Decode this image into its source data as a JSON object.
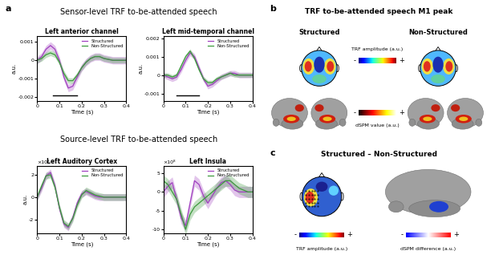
{
  "chart_data": [
    {
      "type": "line",
      "title": "Left anterior channel",
      "xlabel": "Time (s)",
      "ylabel": "a.u.",
      "x": [
        0,
        0.02,
        0.04,
        0.06,
        0.08,
        0.1,
        0.12,
        0.14,
        0.16,
        0.18,
        0.2,
        0.22,
        0.24,
        0.26,
        0.28,
        0.3,
        0.32,
        0.34,
        0.36,
        0.38,
        0.4
      ],
      "xlim": [
        0,
        0.4
      ],
      "xticks": [
        0,
        0.1,
        0.2,
        0.3,
        0.4
      ],
      "ylim": [
        -0.0022,
        0.0013
      ],
      "yticks": [
        -0.002,
        -0.001,
        0,
        0.001
      ],
      "legend": "upper right",
      "significance": {
        "x": [
          0.07,
          0.18
        ],
        "y": -0.0019
      },
      "series": [
        {
          "name": "Structured",
          "color": "#a040c0",
          "error": 0.0002,
          "values": [
            0,
            0.0002,
            0.0006,
            0.0008,
            0.0006,
            0.0,
            -0.0009,
            -0.0015,
            -0.0014,
            -0.0009,
            -0.0004,
            -0.0001,
            0.0001,
            0.0002,
            0.0002,
            0.0001,
            5e-05,
            0,
            0,
            0,
            0
          ]
        },
        {
          "name": "Non-Structured",
          "color": "#3c9a3c",
          "error": 0.00015,
          "values": [
            0,
            0.0001,
            0.0003,
            0.0004,
            0.0003,
            -0.0001,
            -0.0007,
            -0.0011,
            -0.0011,
            -0.0008,
            -0.0004,
            -0.0001,
            0.0001,
            0.0002,
            0.0002,
            0.0001,
            5e-05,
            0,
            0,
            0,
            0
          ]
        }
      ]
    },
    {
      "type": "line",
      "title": "Left mid-temporal channel",
      "xlabel": "Time (s)",
      "ylabel": "a.u.",
      "x": [
        0,
        0.02,
        0.04,
        0.06,
        0.08,
        0.1,
        0.12,
        0.14,
        0.16,
        0.18,
        0.2,
        0.22,
        0.24,
        0.26,
        0.28,
        0.3,
        0.32,
        0.34,
        0.36,
        0.38,
        0.4
      ],
      "xlim": [
        0,
        0.4
      ],
      "xticks": [
        0,
        0.1,
        0.2,
        0.3,
        0.4
      ],
      "ylim": [
        -0.0014,
        0.0021
      ],
      "yticks": [
        -0.001,
        0,
        0.001,
        0.002
      ],
      "legend": "upper right",
      "significance": {
        "x": [
          0.06,
          0.16
        ],
        "y": -0.0011
      },
      "series": [
        {
          "name": "Structured",
          "color": "#a040c0",
          "error": 0.00015,
          "values": [
            0,
            -0.0001,
            -0.0002,
            -0.0001,
            0.0003,
            0.0008,
            0.0012,
            0.001,
            0.0004,
            -0.0002,
            -0.0006,
            -0.0005,
            -0.0003,
            -0.0001,
            0,
            0.0001,
            0.0001,
            0,
            0,
            0,
            0
          ]
        },
        {
          "name": "Non-Structured",
          "color": "#3c9a3c",
          "error": 0.00012,
          "values": [
            0,
            0,
            -0.0001,
            0,
            0.0005,
            0.001,
            0.0013,
            0.0009,
            0.0003,
            -0.0002,
            -0.0004,
            -0.0004,
            -0.0002,
            -0.0001,
            0,
            0.0001,
            0,
            0,
            0,
            0,
            0
          ]
        }
      ]
    },
    {
      "type": "line",
      "title": "Left Auditory Cortex",
      "xlabel": "Time (s)",
      "ylabel": "a.u.",
      "annotations": [
        "×10⁸"
      ],
      "x": [
        0,
        0.02,
        0.04,
        0.06,
        0.08,
        0.1,
        0.12,
        0.14,
        0.16,
        0.18,
        0.2,
        0.22,
        0.24,
        0.26,
        0.28,
        0.3,
        0.32,
        0.34,
        0.36,
        0.38,
        0.4
      ],
      "xlim": [
        0,
        0.4
      ],
      "xticks": [
        0,
        0.1,
        0.2,
        0.3,
        0.4
      ],
      "ylim": [
        -3.2,
        2.8
      ],
      "yticks": [
        -2,
        0,
        2
      ],
      "legend": "upper right",
      "series": [
        {
          "name": "Structured",
          "color": "#a040c0",
          "error": 0.3,
          "values": [
            0,
            0.8,
            1.9,
            2.2,
            1.0,
            -1.0,
            -2.4,
            -2.7,
            -1.8,
            -0.5,
            0.3,
            0.5,
            0.3,
            0.1,
            0,
            0,
            0,
            0,
            0,
            0,
            0
          ]
        },
        {
          "name": "Non-Structured",
          "color": "#3c9a3c",
          "error": 0.3,
          "values": [
            0,
            1.0,
            1.9,
            2.0,
            0.9,
            -0.9,
            -2.3,
            -2.6,
            -1.9,
            -0.7,
            0.2,
            0.6,
            0.4,
            0.2,
            0.1,
            0,
            0,
            0,
            0,
            0,
            0
          ]
        }
      ]
    },
    {
      "type": "line",
      "title": "Left Insula",
      "xlabel": "Time (s)",
      "annotations": [
        "×10⁸"
      ],
      "x": [
        0,
        0.02,
        0.04,
        0.06,
        0.08,
        0.1,
        0.12,
        0.14,
        0.16,
        0.18,
        0.2,
        0.22,
        0.24,
        0.26,
        0.28,
        0.3,
        0.32,
        0.34,
        0.36,
        0.38,
        0.4
      ],
      "xlim": [
        0,
        0.4
      ],
      "xticks": [
        0,
        0.1,
        0.2,
        0.3,
        0.4
      ],
      "ylim": [
        -11,
        7
      ],
      "yticks": [
        -10,
        -5,
        0,
        5
      ],
      "legend": "upper right",
      "series": [
        {
          "name": "Structured",
          "color": "#a040c0",
          "error": 1.5,
          "values": [
            0,
            1.5,
            2.5,
            -2,
            -7,
            -9,
            -3,
            3,
            2,
            -1,
            -3,
            -1,
            1,
            2.5,
            3,
            2,
            0.5,
            0,
            0,
            0,
            0
          ]
        },
        {
          "name": "Non-Structured",
          "color": "#3c9a3c",
          "error": 1.5,
          "values": [
            3,
            2,
            0,
            -2,
            -6,
            -10,
            -6,
            -4,
            -3,
            -2,
            -1,
            0,
            1,
            2,
            3,
            3,
            2,
            1,
            0.5,
            0,
            0
          ]
        }
      ]
    }
  ],
  "figure": {
    "a": {
      "label": "a",
      "sensor_title": "Sensor-level TRF to-be-attended speech",
      "source_title": "Source-level TRF to-be-attended speech"
    },
    "b": {
      "label": "b",
      "title": "TRF to-be-attended speech M1 peak",
      "conditions": [
        "Structured",
        "Non-Structured"
      ],
      "topo_colorbar": {
        "label": "TRF amplitude (a.u.)",
        "low": "-",
        "high": "+"
      },
      "source_colorbar": {
        "label": "dSPM value (a.u.)",
        "low": "-",
        "high": "+"
      }
    },
    "c": {
      "label": "c",
      "title": "Structured – Non-Structured",
      "topo_colorbar": {
        "label": "TRF amplitude (a.u.)",
        "low": "-",
        "high": "+"
      },
      "source_colorbar": {
        "label": "dSPM difference (a.u.)",
        "low": "-",
        "high": "+"
      }
    }
  }
}
